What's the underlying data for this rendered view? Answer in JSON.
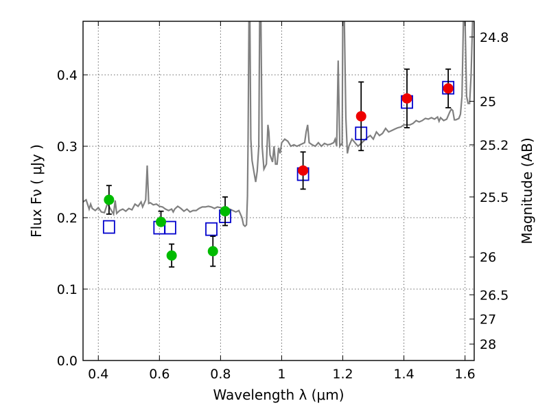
{
  "chart_data": {
    "type": "scatter",
    "title": "",
    "xlabel": "Wavelength  λ (μm)",
    "ylabel": "Flux  Fν  ( μJy )",
    "ylabel_right": "Magnitude (AB)",
    "xlim": [
      0.35,
      1.63
    ],
    "ylim": [
      0.0,
      0.475
    ],
    "grid": true,
    "x_ticks": [
      0.4,
      0.6,
      0.8,
      1.0,
      1.2,
      1.4,
      1.6
    ],
    "x_tick_labels": [
      "0.4",
      "0.6",
      "0.8",
      "1",
      "1.2",
      "1.4",
      "1.6"
    ],
    "y_ticks": [
      0.0,
      0.1,
      0.2,
      0.3,
      0.4
    ],
    "y_tick_labels": [
      "0.0",
      "0.1",
      "0.2",
      "0.3",
      "0.4"
    ],
    "right_ticks": [
      {
        "flux": 0.453,
        "label": "24.8"
      },
      {
        "flux": 0.363,
        "label": "25"
      },
      {
        "flux": 0.302,
        "label": "25.2"
      },
      {
        "flux": 0.229,
        "label": "25.5"
      },
      {
        "flux": 0.145,
        "label": "26"
      },
      {
        "flux": 0.092,
        "label": "26.5"
      },
      {
        "flux": 0.058,
        "label": "27"
      },
      {
        "flux": 0.023,
        "label": "28"
      }
    ],
    "colors": {
      "spectrum": "#808080",
      "model_squares": "#0000cc",
      "optical_points": "#00bb00",
      "nir_points": "#ee0000",
      "errorbars": "#000000"
    },
    "spectrum": [
      [
        0.35,
        0.222
      ],
      [
        0.36,
        0.225
      ],
      [
        0.37,
        0.212
      ],
      [
        0.375,
        0.219
      ],
      [
        0.38,
        0.213
      ],
      [
        0.39,
        0.21
      ],
      [
        0.4,
        0.214
      ],
      [
        0.41,
        0.208
      ],
      [
        0.42,
        0.207
      ],
      [
        0.43,
        0.22
      ],
      [
        0.44,
        0.212
      ],
      [
        0.45,
        0.205
      ],
      [
        0.455,
        0.224
      ],
      [
        0.46,
        0.206
      ],
      [
        0.47,
        0.21
      ],
      [
        0.48,
        0.212
      ],
      [
        0.49,
        0.209
      ],
      [
        0.5,
        0.213
      ],
      [
        0.51,
        0.211
      ],
      [
        0.52,
        0.219
      ],
      [
        0.53,
        0.216
      ],
      [
        0.54,
        0.222
      ],
      [
        0.545,
        0.215
      ],
      [
        0.55,
        0.22
      ],
      [
        0.555,
        0.225
      ],
      [
        0.56,
        0.273
      ],
      [
        0.565,
        0.22
      ],
      [
        0.57,
        0.221
      ],
      [
        0.58,
        0.218
      ],
      [
        0.59,
        0.219
      ],
      [
        0.6,
        0.216
      ],
      [
        0.61,
        0.215
      ],
      [
        0.62,
        0.212
      ],
      [
        0.63,
        0.21
      ],
      [
        0.64,
        0.212
      ],
      [
        0.645,
        0.208
      ],
      [
        0.65,
        0.212
      ],
      [
        0.66,
        0.216
      ],
      [
        0.67,
        0.213
      ],
      [
        0.68,
        0.209
      ],
      [
        0.69,
        0.212
      ],
      [
        0.7,
        0.208
      ],
      [
        0.71,
        0.21
      ],
      [
        0.72,
        0.21
      ],
      [
        0.73,
        0.213
      ],
      [
        0.74,
        0.215
      ],
      [
        0.75,
        0.215
      ],
      [
        0.76,
        0.216
      ],
      [
        0.77,
        0.215
      ],
      [
        0.78,
        0.213
      ],
      [
        0.79,
        0.215
      ],
      [
        0.8,
        0.214
      ],
      [
        0.81,
        0.213
      ],
      [
        0.82,
        0.212
      ],
      [
        0.83,
        0.212
      ],
      [
        0.84,
        0.21
      ],
      [
        0.85,
        0.208
      ],
      [
        0.86,
        0.21
      ],
      [
        0.87,
        0.2
      ],
      [
        0.875,
        0.19
      ],
      [
        0.88,
        0.188
      ],
      [
        0.885,
        0.19
      ],
      [
        0.888,
        0.23
      ],
      [
        0.89,
        0.31
      ],
      [
        0.893,
        0.48
      ],
      [
        0.896,
        0.48
      ],
      [
        0.899,
        0.31
      ],
      [
        0.903,
        0.28
      ],
      [
        0.91,
        0.262
      ],
      [
        0.915,
        0.25
      ],
      [
        0.92,
        0.265
      ],
      [
        0.925,
        0.3
      ],
      [
        0.928,
        0.48
      ],
      [
        0.932,
        0.48
      ],
      [
        0.936,
        0.3
      ],
      [
        0.942,
        0.268
      ],
      [
        0.95,
        0.275
      ],
      [
        0.955,
        0.33
      ],
      [
        0.958,
        0.32
      ],
      [
        0.962,
        0.288
      ],
      [
        0.97,
        0.278
      ],
      [
        0.975,
        0.3
      ],
      [
        0.98,
        0.275
      ],
      [
        0.985,
        0.275
      ],
      [
        0.99,
        0.298
      ],
      [
        0.995,
        0.29
      ],
      [
        1.0,
        0.305
      ],
      [
        1.01,
        0.31
      ],
      [
        1.02,
        0.307
      ],
      [
        1.03,
        0.3
      ],
      [
        1.04,
        0.302
      ],
      [
        1.05,
        0.3
      ],
      [
        1.06,
        0.302
      ],
      [
        1.075,
        0.305
      ],
      [
        1.08,
        0.32
      ],
      [
        1.085,
        0.33
      ],
      [
        1.09,
        0.305
      ],
      [
        1.1,
        0.302
      ],
      [
        1.11,
        0.3
      ],
      [
        1.12,
        0.305
      ],
      [
        1.13,
        0.3
      ],
      [
        1.14,
        0.304
      ],
      [
        1.15,
        0.302
      ],
      [
        1.16,
        0.303
      ],
      [
        1.17,
        0.305
      ],
      [
        1.175,
        0.31
      ],
      [
        1.18,
        0.3
      ],
      [
        1.185,
        0.42
      ],
      [
        1.19,
        0.3
      ],
      [
        1.195,
        0.303
      ],
      [
        1.198,
        0.302
      ],
      [
        1.2,
        0.48
      ],
      [
        1.205,
        0.48
      ],
      [
        1.21,
        0.34
      ],
      [
        1.215,
        0.29
      ],
      [
        1.22,
        0.3
      ],
      [
        1.23,
        0.31
      ],
      [
        1.24,
        0.305
      ],
      [
        1.25,
        0.3
      ],
      [
        1.26,
        0.304
      ],
      [
        1.27,
        0.308
      ],
      [
        1.28,
        0.312
      ],
      [
        1.29,
        0.315
      ],
      [
        1.3,
        0.31
      ],
      [
        1.31,
        0.32
      ],
      [
        1.32,
        0.315
      ],
      [
        1.33,
        0.318
      ],
      [
        1.34,
        0.325
      ],
      [
        1.35,
        0.32
      ],
      [
        1.36,
        0.322
      ],
      [
        1.37,
        0.324
      ],
      [
        1.38,
        0.326
      ],
      [
        1.39,
        0.327
      ],
      [
        1.4,
        0.33
      ],
      [
        1.41,
        0.33
      ],
      [
        1.42,
        0.33
      ],
      [
        1.43,
        0.332
      ],
      [
        1.44,
        0.336
      ],
      [
        1.45,
        0.334
      ],
      [
        1.46,
        0.336
      ],
      [
        1.47,
        0.339
      ],
      [
        1.48,
        0.338
      ],
      [
        1.49,
        0.34
      ],
      [
        1.5,
        0.338
      ],
      [
        1.51,
        0.341
      ],
      [
        1.515,
        0.335
      ],
      [
        1.52,
        0.34
      ],
      [
        1.53,
        0.336
      ],
      [
        1.54,
        0.338
      ],
      [
        1.55,
        0.348
      ],
      [
        1.555,
        0.352
      ],
      [
        1.56,
        0.35
      ],
      [
        1.565,
        0.337
      ],
      [
        1.57,
        0.337
      ],
      [
        1.58,
        0.339
      ],
      [
        1.585,
        0.345
      ],
      [
        1.59,
        0.37
      ],
      [
        1.595,
        0.48
      ],
      [
        1.6,
        0.48
      ],
      [
        1.605,
        0.37
      ],
      [
        1.61,
        0.36
      ],
      [
        1.615,
        0.36
      ],
      [
        1.62,
        0.4
      ],
      [
        1.625,
        0.48
      ],
      [
        1.63,
        0.48
      ]
    ],
    "model_squares": [
      {
        "x": 0.435,
        "y": 0.187
      },
      {
        "x": 0.6,
        "y": 0.186
      },
      {
        "x": 0.635,
        "y": 0.186
      },
      {
        "x": 0.77,
        "y": 0.184
      },
      {
        "x": 0.815,
        "y": 0.202
      },
      {
        "x": 1.07,
        "y": 0.261
      },
      {
        "x": 1.26,
        "y": 0.318
      },
      {
        "x": 1.41,
        "y": 0.362
      },
      {
        "x": 1.545,
        "y": 0.382
      }
    ],
    "series": [
      {
        "color_key": "optical_points",
        "points": [
          {
            "x": 0.435,
            "y": 0.225,
            "err_lo": 0.02,
            "err_hi": 0.02
          },
          {
            "x": 0.605,
            "y": 0.194,
            "err_lo": 0.0,
            "err_hi": 0.015
          },
          {
            "x": 0.64,
            "y": 0.147,
            "err_lo": 0.016,
            "err_hi": 0.016
          },
          {
            "x": 0.775,
            "y": 0.153,
            "err_lo": 0.021,
            "err_hi": 0.021
          },
          {
            "x": 0.815,
            "y": 0.209,
            "err_lo": 0.02,
            "err_hi": 0.02
          }
        ]
      },
      {
        "color_key": "nir_points",
        "points": [
          {
            "x": 1.07,
            "y": 0.266,
            "err_lo": 0.026,
            "err_hi": 0.026
          },
          {
            "x": 1.26,
            "y": 0.342,
            "err_lo": 0.048,
            "err_hi": 0.048
          },
          {
            "x": 1.41,
            "y": 0.367,
            "err_lo": 0.041,
            "err_hi": 0.041
          },
          {
            "x": 1.545,
            "y": 0.381,
            "err_lo": 0.027,
            "err_hi": 0.027
          }
        ]
      }
    ]
  }
}
